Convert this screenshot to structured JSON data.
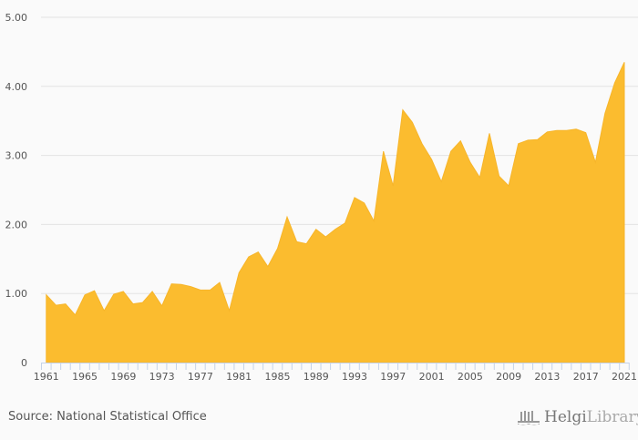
{
  "chart_data": {
    "type": "area",
    "title": "",
    "xlabel": "",
    "ylabel": "",
    "ylim": [
      0,
      5
    ],
    "yticks": [
      0,
      1,
      2,
      3,
      4,
      5
    ],
    "ytick_labels": [
      "0",
      "1.00",
      "2.00",
      "3.00",
      "4.00",
      "5.00"
    ],
    "xtick_labels": [
      "1961",
      "1965",
      "1969",
      "1973",
      "1977",
      "1981",
      "1985",
      "1989",
      "1993",
      "1997",
      "2001",
      "2005",
      "2009",
      "2013",
      "2017",
      "2021"
    ],
    "grid": true,
    "color": "#fbbc2f",
    "x": [
      1961,
      1962,
      1963,
      1964,
      1965,
      1966,
      1967,
      1968,
      1969,
      1970,
      1971,
      1972,
      1973,
      1974,
      1975,
      1976,
      1977,
      1978,
      1979,
      1980,
      1981,
      1982,
      1983,
      1984,
      1985,
      1986,
      1987,
      1988,
      1989,
      1990,
      1991,
      1992,
      1993,
      1994,
      1995,
      1996,
      1997,
      1998,
      1999,
      2000,
      2001,
      2002,
      2003,
      2004,
      2005,
      2006,
      2007,
      2008,
      2009,
      2010,
      2011,
      2012,
      2013,
      2014,
      2015,
      2016,
      2017,
      2018,
      2019,
      2020,
      2021
    ],
    "values": [
      0.98,
      0.83,
      0.85,
      0.69,
      0.98,
      1.04,
      0.75,
      0.99,
      1.03,
      0.85,
      0.87,
      1.03,
      0.82,
      1.14,
      1.13,
      1.1,
      1.05,
      1.05,
      1.16,
      0.75,
      1.3,
      1.53,
      1.6,
      1.39,
      1.65,
      2.11,
      1.75,
      1.72,
      1.93,
      1.82,
      1.93,
      2.02,
      2.39,
      2.31,
      2.05,
      3.06,
      2.56,
      3.66,
      3.48,
      3.17,
      2.94,
      2.62,
      3.06,
      3.21,
      2.9,
      2.68,
      3.32,
      2.7,
      2.56,
      3.17,
      3.22,
      3.23,
      3.34,
      3.36,
      3.36,
      3.38,
      3.33,
      2.9,
      3.61,
      4.05,
      4.35
    ]
  },
  "footer": {
    "source": "Source: National Statistical Office",
    "logo_bold": "Helgi",
    "logo_light": "Library."
  }
}
